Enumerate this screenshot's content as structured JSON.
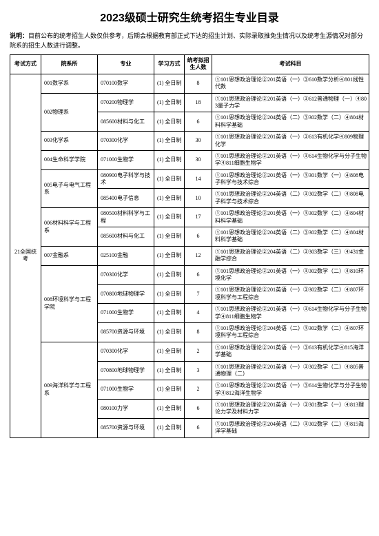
{
  "title": "2023级硕士研究生统考招生专业目录",
  "note_label": "说明：",
  "note_text": "目前公布的统考招生人数仅供参考，后期会根据教育部正式下达的招生计划、实际录取推免生情况以及统考生源情况对部分院系的招生人数进行调整。",
  "headers": [
    "考试方式",
    "院系所",
    "专业",
    "学习方式",
    "统考拟招生人数",
    "考试科目"
  ],
  "exam_mode": "21全国统考",
  "study_mode": "(1) 全日制",
  "depts": [
    {
      "name": "001数学系",
      "majors": [
        {
          "code": "070100数学",
          "n": "8",
          "subj": "①101思想政治理论②201英语（一）③610数学分析④801线性代数"
        }
      ]
    },
    {
      "name": "002物理系",
      "majors": [
        {
          "code": "070200物理学",
          "n": "18",
          "subj": "①101思想政治理论②201英语（一）③612普通物理（一）④803量子力学"
        },
        {
          "code": "085600材料与化工",
          "n": "6",
          "subj": "①101思想政治理论②204英语（二）③302数学（二）④804材料科学基础"
        }
      ]
    },
    {
      "name": "003化学系",
      "majors": [
        {
          "code": "070300化学",
          "n": "30",
          "subj": "①101思想政治理论②201英语（一）③613有机化学④809物理化学"
        }
      ]
    },
    {
      "name": "004生命科学学院",
      "majors": [
        {
          "code": "071000生物学",
          "n": "30",
          "subj": "①101思想政治理论②201英语（一）③614生物化学与分子生物学④811细胞生物学"
        }
      ]
    },
    {
      "name": "005电子与电气工程系",
      "majors": [
        {
          "code": "080900电子科学与技术",
          "n": "14",
          "subj": "①101思想政治理论②201英语（一）③301数学（一）④808电子科学与技术综合"
        },
        {
          "code": "085400电子信息",
          "n": "10",
          "subj": "①101思想政治理论②204英语（二）③302数学（二）④808电子科学与技术综合"
        }
      ]
    },
    {
      "name": "006材料科学与工程系",
      "majors": [
        {
          "code": "080500材料科学与工程",
          "n": "17",
          "subj": "①101思想政治理论②201英语（一）③302数学（二）④804材料科学基础"
        },
        {
          "code": "085600材料与化工",
          "n": "6",
          "subj": "①101思想政治理论②204英语（二）③302数学（二）④804材料科学基础"
        }
      ]
    },
    {
      "name": "007金融系",
      "majors": [
        {
          "code": "025100金融",
          "n": "12",
          "subj": "①101思想政治理论②204英语（二）③303数学（三）④431金融学综合"
        }
      ]
    },
    {
      "name": "008环境科学与工程学院",
      "majors": [
        {
          "code": "070300化学",
          "n": "6",
          "subj": "①101思想政治理论②201英语（一）③302数学（二）④810环境化学"
        },
        {
          "code": "070800地球物理学",
          "n": "7",
          "subj": "①101思想政治理论②201英语（一）③302数学（二）④807环境科学与工程综合"
        },
        {
          "code": "071000生物学",
          "n": "4",
          "subj": "①101思想政治理论②201英语（一）③614生物化学与分子生物学④811细胞生物学"
        },
        {
          "code": "085700资源与环境",
          "n": "8",
          "subj": "①101思想政治理论②204英语（二）③302数学（二）④807环境科学与工程综合"
        }
      ]
    },
    {
      "name": "009海洋科学与工程系",
      "majors": [
        {
          "code": "070300化学",
          "n": "2",
          "subj": "①101思想政治理论②201英语（一）③613有机化学④815海洋学基础"
        },
        {
          "code": "070800地球物理学",
          "n": "3",
          "subj": "①101思想政治理论②201英语（一）③302数学（二）④805普通物理（二）"
        },
        {
          "code": "071000生物学",
          "n": "2",
          "subj": "①101思想政治理论②201英语（一）③614生物化学与分子生物学④812海洋生物学"
        },
        {
          "code": "080100力学",
          "n": "6",
          "subj": "①101思想政治理论②201英语（一）③301数学（一）④813理论力学及材料力学"
        },
        {
          "code": "085700资源与环境",
          "n": "6",
          "subj": "①101思想政治理论②204英语（二）③302数学（二）④815海洋学基础"
        }
      ]
    }
  ]
}
